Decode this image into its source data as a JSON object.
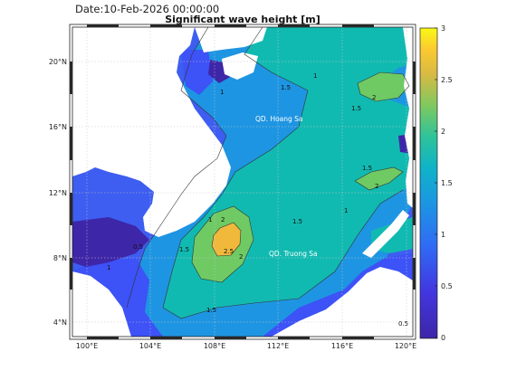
{
  "header": {
    "date_label": "Date:10-Feb-2026 00:00:00",
    "title": "Significant wave height [m]"
  },
  "map": {
    "lon_ticks": [
      "100°E",
      "104°E",
      "108°E",
      "112°E",
      "116°E",
      "120°E"
    ],
    "lat_ticks": [
      "20°N",
      "16°N",
      "12°N",
      "8°N",
      "4°N"
    ],
    "places": [
      "QD. Hoang Sa",
      "QD. Truong Sa"
    ],
    "contour_labels": [
      "0.5",
      "1",
      "1.5",
      "2",
      "2.5"
    ]
  },
  "colorbar": {
    "ticks": [
      "3",
      "2.5",
      "2",
      "1.5",
      "1",
      "0.5",
      "0"
    ],
    "range": [
      0,
      3
    ],
    "colormap": "parula",
    "colors": {
      "v0": "#3e26a8",
      "v05": "#3d52f7",
      "v10": "#1e95e2",
      "v15": "#11bab1",
      "v20": "#6fca63",
      "v25": "#f1b93b",
      "v30": "#f9f914"
    }
  },
  "colors": {
    "land": "#ffffff",
    "grid": "#c8c8c8"
  }
}
